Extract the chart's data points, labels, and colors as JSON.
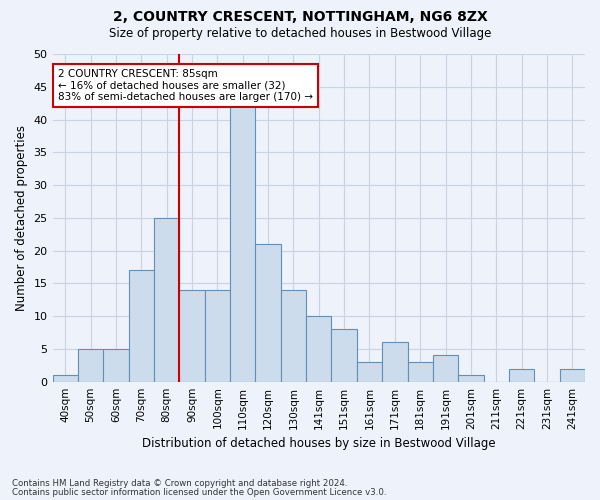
{
  "title1": "2, COUNTRY CRESCENT, NOTTINGHAM, NG6 8ZX",
  "title2": "Size of property relative to detached houses in Bestwood Village",
  "xlabel": "Distribution of detached houses by size in Bestwood Village",
  "ylabel": "Number of detached properties",
  "categories": [
    "40sqm",
    "50sqm",
    "60sqm",
    "70sqm",
    "80sqm",
    "90sqm",
    "100sqm",
    "110sqm",
    "120sqm",
    "130sqm",
    "141sqm",
    "151sqm",
    "161sqm",
    "171sqm",
    "181sqm",
    "191sqm",
    "201sqm",
    "211sqm",
    "221sqm",
    "231sqm",
    "241sqm"
  ],
  "values": [
    1,
    5,
    5,
    17,
    25,
    14,
    14,
    42,
    21,
    14,
    10,
    8,
    3,
    6,
    3,
    4,
    1,
    0,
    2,
    0,
    2
  ],
  "bar_color": "#ccdcec",
  "bar_edge_color": "#6090b8",
  "bar_edge_width": 0.8,
  "ylim": [
    0,
    50
  ],
  "yticks": [
    0,
    5,
    10,
    15,
    20,
    25,
    30,
    35,
    40,
    45,
    50
  ],
  "vline_color": "#cc0000",
  "annotation_text": "2 COUNTRY CRESCENT: 85sqm\n← 16% of detached houses are smaller (32)\n83% of semi-detached houses are larger (170) →",
  "annotation_box_color": "#ffffff",
  "annotation_box_edge_color": "#cc0000",
  "grid_color": "#c8d4e4",
  "background_color": "#eef2fa",
  "footer1": "Contains HM Land Registry data © Crown copyright and database right 2024.",
  "footer2": "Contains public sector information licensed under the Open Government Licence v3.0."
}
